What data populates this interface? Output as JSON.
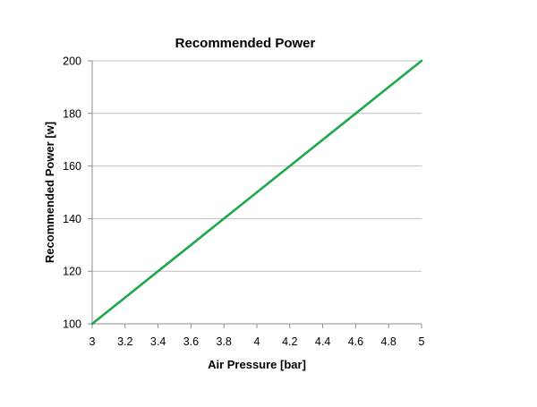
{
  "chart_data": {
    "type": "line",
    "title": "Recommended Power",
    "xlabel": "Air Pressure [bar]",
    "ylabel": "Recommended Power [w]",
    "xlim": [
      3,
      5
    ],
    "ylim": [
      100,
      200
    ],
    "x_ticks": [
      "3",
      "3.2",
      "3.4",
      "3.6",
      "3.8",
      "4",
      "4.2",
      "4.4",
      "4.6",
      "4.8",
      "5"
    ],
    "y_ticks": [
      "100",
      "120",
      "140",
      "160",
      "180",
      "200"
    ],
    "grid": "horizontal",
    "legend": "none",
    "series": [
      {
        "x": [
          3,
          3.2,
          3.4,
          3.6,
          3.8,
          4,
          4.2,
          4.4,
          4.6,
          4.8,
          5
        ],
        "y": [
          100,
          110,
          120,
          130,
          140,
          150,
          160,
          170,
          180,
          190,
          200
        ],
        "color": "#1ea84a"
      }
    ]
  }
}
